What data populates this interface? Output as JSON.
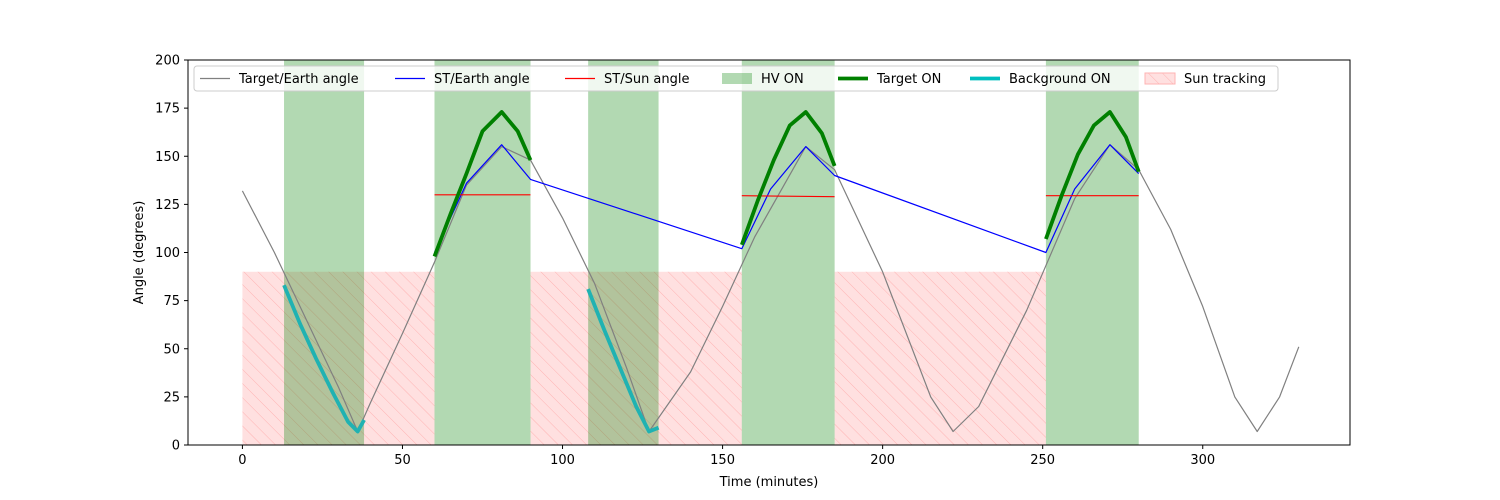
{
  "chart_data": {
    "type": "line",
    "title": "",
    "xlabel": "Time (minutes)",
    "ylabel": "Angle (degrees)",
    "xlim": [
      -17,
      346
    ],
    "ylim": [
      0,
      200
    ],
    "xticks": [
      0,
      50,
      100,
      150,
      200,
      250,
      300
    ],
    "yticks": [
      0,
      25,
      50,
      75,
      100,
      125,
      150,
      175,
      200
    ],
    "grid": false,
    "legend_position": "top",
    "legend": [
      {
        "label": "Target/Earth angle",
        "kind": "line",
        "color": "#808080"
      },
      {
        "label": "ST/Earth angle",
        "kind": "line",
        "color": "#0000ff"
      },
      {
        "label": "ST/Sun angle",
        "kind": "line",
        "color": "#ff0000"
      },
      {
        "label": "HV ON",
        "kind": "patch",
        "color": "#008000"
      },
      {
        "label": "Target ON",
        "kind": "thick",
        "color": "#008000"
      },
      {
        "label": "Background ON",
        "kind": "thick",
        "color": "#00bfbf"
      },
      {
        "label": "Sun tracking",
        "kind": "hatch",
        "color": "#ff9999"
      }
    ],
    "hv_on": [
      [
        13,
        38
      ],
      [
        60,
        90
      ],
      [
        108,
        130
      ],
      [
        156,
        185
      ],
      [
        251,
        280
      ]
    ],
    "sun_tracking": {
      "y_top": 90,
      "intervals": [
        [
          0,
          60
        ],
        [
          90,
          156
        ],
        [
          185,
          251
        ]
      ]
    },
    "series": [
      {
        "name": "Target/Earth angle",
        "color": "#808080",
        "x": [
          0,
          10,
          20,
          30,
          36,
          40,
          50,
          60,
          70,
          81,
          90,
          100,
          110,
          120,
          127,
          140,
          150,
          160,
          176,
          185,
          200,
          215,
          222,
          230,
          245,
          260,
          271,
          280,
          290,
          300,
          310,
          317,
          324,
          330
        ],
        "y": [
          132,
          100,
          65,
          30,
          7,
          22,
          58,
          95,
          135,
          155,
          148,
          118,
          84,
          40,
          7,
          38,
          72,
          108,
          155,
          143,
          90,
          25,
          7,
          20,
          70,
          128,
          156,
          143,
          112,
          72,
          25,
          7,
          25,
          51
        ]
      },
      {
        "name": "ST/Earth angle",
        "color": "#0000ff",
        "x": [
          60,
          70,
          81,
          90,
          156,
          165,
          176,
          185,
          251,
          260,
          271,
          280
        ],
        "y": [
          100,
          136,
          156,
          138,
          102,
          133,
          155,
          140,
          100,
          133,
          156,
          141
        ]
      },
      {
        "name": "ST/Sun angle",
        "color": "#ff0000",
        "segments": [
          {
            "x": [
              60,
              90
            ],
            "y": [
              130,
              130
            ]
          },
          {
            "x": [
              156,
              185
            ],
            "y": [
              129.5,
              129
            ]
          },
          {
            "x": [
              251,
              280
            ],
            "y": [
              129.5,
              129.5
            ]
          }
        ]
      },
      {
        "name": "Target ON",
        "color": "#008000",
        "segments": [
          {
            "x": [
              60,
              65,
              70,
              75,
              81,
              86,
              90
            ],
            "y": [
              98,
              120,
              141,
              163,
              173,
              163,
              148
            ]
          },
          {
            "x": [
              156,
              161,
              166,
              171,
              176,
              181,
              185
            ],
            "y": [
              104,
              127,
              148,
              166,
              173,
              162,
              145
            ]
          },
          {
            "x": [
              251,
              256,
              261,
              266,
              271,
              276,
              280
            ],
            "y": [
              107,
              130,
              151,
              166,
              173,
              160,
              142
            ]
          }
        ]
      },
      {
        "name": "Background ON",
        "color": "#20b2b2",
        "segments": [
          {
            "x": [
              13,
              18,
              23,
              28,
              33,
              36,
              38
            ],
            "y": [
              83,
              63,
              45,
              28,
              12,
              7,
              13
            ]
          },
          {
            "x": [
              108,
              113,
              118,
              123,
              127,
              130
            ],
            "y": [
              81,
              60,
              40,
              20,
              7,
              9
            ]
          }
        ]
      }
    ]
  }
}
